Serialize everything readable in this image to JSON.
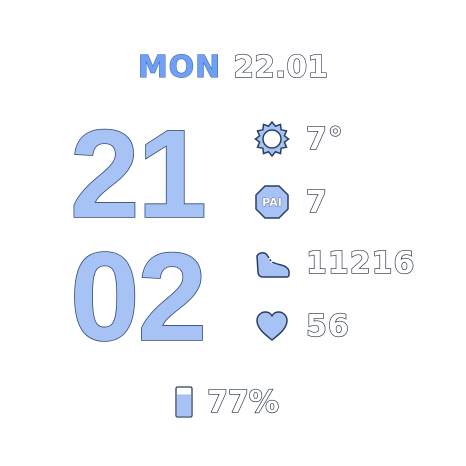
{
  "date": {
    "day": "MON",
    "value": "22.01"
  },
  "time": {
    "hour": "21",
    "minute": "02"
  },
  "stats": {
    "temperature": "7°",
    "pai": "7",
    "pai_label": "PAI",
    "steps": "11216",
    "heart_rate": "56"
  },
  "battery": {
    "percent_text": "77%",
    "level": 0.77
  },
  "icons": {
    "temperature": "sun-icon",
    "pai": "pai-badge-icon",
    "steps": "shoe-icon",
    "heart_rate": "heart-icon",
    "battery": "battery-icon"
  },
  "colors": {
    "accent": "#a7c3f6",
    "accent_dark": "#6fa0f5",
    "background": "#ffffff"
  }
}
